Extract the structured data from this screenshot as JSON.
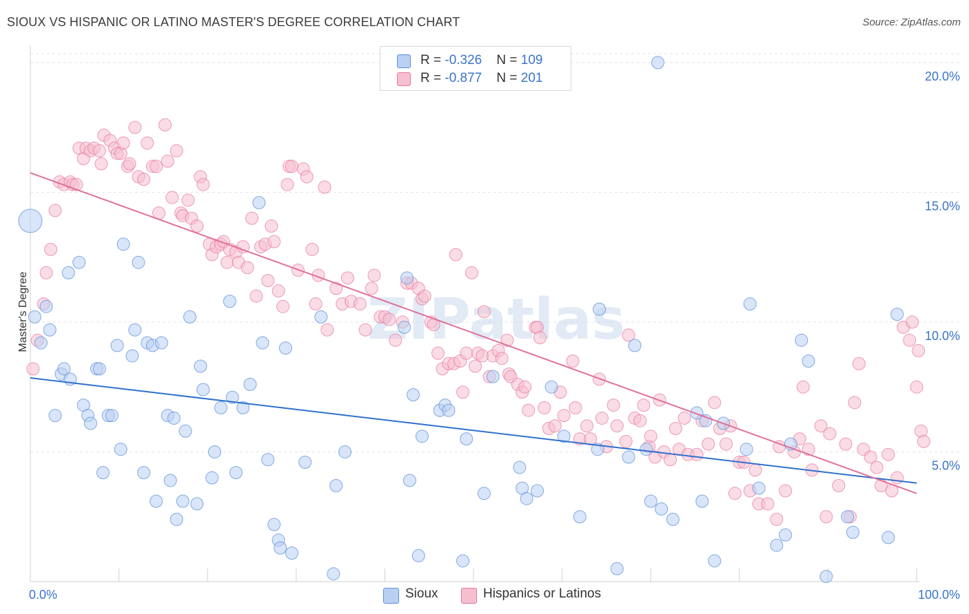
{
  "title": "SIOUX VS HISPANIC OR LATINO MASTER'S DEGREE CORRELATION CHART",
  "source": "Source: ZipAtlas.com",
  "watermark": "ZIPatlas",
  "colors": {
    "sioux": "#5b8fdc",
    "sioux_fill": "#b9d0f3",
    "hispanic": "#e5739a",
    "hispanic_fill": "#f6bfd0",
    "sioux_line": "#2f6fcf",
    "hispanic_line": "#e0709a",
    "tick_label": "#3a73c9"
  },
  "legend_top": [
    {
      "r_label": "R = ",
      "r_value": "-0.326",
      "n_label": "N = ",
      "n_value": "109"
    },
    {
      "r_label": "R = ",
      "r_value": "-0.877",
      "n_label": "N = ",
      "n_value": "201"
    }
  ],
  "chart_data": {
    "type": "scatter",
    "title": "SIOUX VS HISPANIC OR LATINO MASTER'S DEGREE CORRELATION CHART",
    "xlabel": "",
    "ylabel": "Master's Degree",
    "xlim": [
      0,
      100
    ],
    "ylim": [
      0,
      20.5
    ],
    "x_tick_labels": [
      "0.0%",
      "100.0%"
    ],
    "y_ticks": [
      5,
      10,
      15,
      20
    ],
    "y_tick_labels": [
      "5.0%",
      "10.0%",
      "15.0%",
      "20.0%"
    ],
    "grid": "horizontal dashed",
    "legend": "top-center and bottom",
    "series": [
      {
        "name": "Sioux",
        "r": -0.326,
        "n": 109,
        "trend": [
          [
            0,
            7.85
          ],
          [
            100,
            3.8
          ]
        ],
        "points": [
          [
            0,
            13.9
          ],
          [
            0.5,
            10.2
          ],
          [
            1.2,
            9.2
          ],
          [
            1.8,
            10.6
          ],
          [
            2.2,
            9.7
          ],
          [
            2.8,
            6.4
          ],
          [
            3.5,
            8.0
          ],
          [
            3.8,
            8.2
          ],
          [
            4.5,
            7.8
          ],
          [
            4.3,
            11.9
          ],
          [
            5.5,
            12.3
          ],
          [
            6.0,
            6.8
          ],
          [
            6.5,
            6.4
          ],
          [
            6.8,
            6.1
          ],
          [
            7.5,
            8.2
          ],
          [
            7.8,
            8.2
          ],
          [
            8.2,
            4.2
          ],
          [
            8.8,
            6.4
          ],
          [
            9.2,
            6.4
          ],
          [
            9.8,
            9.1
          ],
          [
            10.2,
            5.1
          ],
          [
            10.5,
            13.0
          ],
          [
            11.5,
            8.7
          ],
          [
            11.8,
            9.7
          ],
          [
            12.2,
            12.3
          ],
          [
            12.8,
            4.2
          ],
          [
            13.2,
            9.2
          ],
          [
            13.8,
            9.1
          ],
          [
            14.2,
            3.1
          ],
          [
            14.8,
            9.2
          ],
          [
            15.5,
            6.4
          ],
          [
            15.8,
            3.9
          ],
          [
            16.2,
            6.3
          ],
          [
            16.5,
            2.4
          ],
          [
            17.2,
            3.1
          ],
          [
            17.5,
            5.8
          ],
          [
            18.0,
            10.2
          ],
          [
            18.8,
            3.0
          ],
          [
            19.2,
            8.3
          ],
          [
            19.5,
            7.4
          ],
          [
            20.5,
            4.0
          ],
          [
            20.8,
            5.0
          ],
          [
            21.5,
            6.7
          ],
          [
            22.5,
            10.8
          ],
          [
            22.8,
            7.1
          ],
          [
            23.2,
            4.2
          ],
          [
            24.0,
            6.7
          ],
          [
            24.8,
            7.6
          ],
          [
            25.8,
            14.6
          ],
          [
            26.2,
            9.2
          ],
          [
            26.8,
            4.7
          ],
          [
            27.5,
            2.2
          ],
          [
            28.0,
            1.6
          ],
          [
            28.2,
            1.3
          ],
          [
            28.8,
            9.0
          ],
          [
            29.5,
            1.1
          ],
          [
            31.0,
            4.6
          ],
          [
            32.8,
            10.2
          ],
          [
            34.2,
            0.3
          ],
          [
            34.5,
            3.7
          ],
          [
            35.5,
            5.0
          ],
          [
            42.2,
            9.8
          ],
          [
            42.5,
            11.7
          ],
          [
            42.8,
            3.9
          ],
          [
            43.2,
            7.2
          ],
          [
            43.8,
            1.0
          ],
          [
            44.2,
            5.6
          ],
          [
            46.2,
            6.6
          ],
          [
            46.8,
            6.8
          ],
          [
            47.2,
            6.6
          ],
          [
            48.8,
            0.8
          ],
          [
            49.2,
            5.5
          ],
          [
            51.2,
            3.4
          ],
          [
            52.2,
            7.9
          ],
          [
            55.2,
            4.4
          ],
          [
            55.5,
            3.6
          ],
          [
            56.0,
            3.2
          ],
          [
            57.2,
            3.5
          ],
          [
            58.8,
            7.5
          ],
          [
            60.2,
            5.6
          ],
          [
            62.0,
            2.5
          ],
          [
            64.0,
            5.1
          ],
          [
            64.2,
            10.5
          ],
          [
            66.2,
            0.5
          ],
          [
            67.5,
            4.8
          ],
          [
            68.2,
            9.1
          ],
          [
            69.5,
            5.1
          ],
          [
            70.0,
            3.1
          ],
          [
            70.8,
            20.0
          ],
          [
            71.2,
            2.8
          ],
          [
            72.5,
            2.4
          ],
          [
            75.2,
            6.5
          ],
          [
            75.8,
            3.1
          ],
          [
            76.2,
            6.2
          ],
          [
            77.2,
            0.8
          ],
          [
            78.2,
            6.1
          ],
          [
            80.8,
            5.1
          ],
          [
            81.2,
            10.7
          ],
          [
            82.2,
            3.6
          ],
          [
            84.2,
            1.4
          ],
          [
            85.2,
            1.8
          ],
          [
            85.8,
            5.3
          ],
          [
            87.0,
            9.3
          ],
          [
            87.8,
            8.5
          ],
          [
            89.8,
            0.2
          ],
          [
            92.2,
            2.5
          ],
          [
            92.8,
            1.9
          ],
          [
            96.8,
            1.7
          ],
          [
            97.8,
            10.3
          ]
        ]
      },
      {
        "name": "Hispanics or Latinos",
        "r": -0.877,
        "n": 201,
        "trend": [
          [
            0,
            15.75
          ],
          [
            100,
            3.4
          ]
        ],
        "points": [
          [
            0.3,
            8.2
          ],
          [
            0.8,
            9.3
          ],
          [
            1.5,
            10.7
          ],
          [
            1.8,
            11.9
          ],
          [
            2.3,
            12.8
          ],
          [
            2.8,
            14.3
          ],
          [
            3.3,
            15.4
          ],
          [
            3.8,
            15.3
          ],
          [
            4.5,
            15.4
          ],
          [
            4.8,
            15.3
          ],
          [
            5.2,
            15.3
          ],
          [
            5.5,
            16.7
          ],
          [
            6.0,
            16.3
          ],
          [
            6.3,
            16.7
          ],
          [
            6.8,
            16.6
          ],
          [
            7.2,
            16.7
          ],
          [
            7.8,
            16.6
          ],
          [
            8.0,
            16.1
          ],
          [
            8.3,
            17.2
          ],
          [
            9.0,
            17.0
          ],
          [
            9.5,
            16.7
          ],
          [
            9.8,
            16.5
          ],
          [
            10.2,
            16.5
          ],
          [
            10.5,
            16.9
          ],
          [
            11.0,
            16.0
          ],
          [
            11.2,
            16.1
          ],
          [
            11.8,
            17.5
          ],
          [
            12.2,
            15.6
          ],
          [
            12.8,
            15.5
          ],
          [
            13.2,
            16.9
          ],
          [
            13.8,
            16.0
          ],
          [
            14.2,
            16.0
          ],
          [
            14.5,
            14.2
          ],
          [
            15.2,
            17.6
          ],
          [
            15.5,
            16.2
          ],
          [
            16.0,
            14.8
          ],
          [
            16.5,
            16.6
          ],
          [
            17.0,
            14.2
          ],
          [
            17.2,
            14.1
          ],
          [
            17.8,
            14.7
          ],
          [
            18.2,
            14.0
          ],
          [
            18.8,
            13.7
          ],
          [
            19.2,
            15.6
          ],
          [
            19.5,
            15.3
          ],
          [
            20.2,
            13.0
          ],
          [
            20.5,
            12.6
          ],
          [
            21.0,
            12.9
          ],
          [
            21.5,
            13.0
          ],
          [
            21.8,
            13.1
          ],
          [
            22.2,
            12.3
          ],
          [
            22.5,
            12.8
          ],
          [
            23.2,
            12.7
          ],
          [
            23.5,
            12.3
          ],
          [
            24.0,
            12.9
          ],
          [
            24.5,
            12.1
          ],
          [
            25.0,
            14.0
          ],
          [
            25.5,
            11.0
          ],
          [
            26.0,
            12.9
          ],
          [
            26.5,
            13.0
          ],
          [
            26.8,
            11.6
          ],
          [
            27.2,
            13.7
          ],
          [
            27.5,
            13.1
          ],
          [
            28.0,
            11.2
          ],
          [
            28.5,
            10.6
          ],
          [
            29.0,
            15.3
          ],
          [
            29.2,
            16.0
          ],
          [
            29.5,
            16.0
          ],
          [
            30.2,
            12.0
          ],
          [
            30.8,
            15.9
          ],
          [
            31.2,
            15.6
          ],
          [
            31.8,
            12.8
          ],
          [
            32.2,
            10.7
          ],
          [
            32.5,
            11.8
          ],
          [
            33.2,
            15.2
          ],
          [
            33.5,
            9.7
          ],
          [
            34.5,
            11.3
          ],
          [
            35.2,
            10.7
          ],
          [
            35.8,
            11.7
          ],
          [
            36.2,
            10.8
          ],
          [
            37.2,
            10.7
          ],
          [
            37.8,
            9.7
          ],
          [
            38.5,
            11.3
          ],
          [
            38.8,
            11.8
          ],
          [
            39.5,
            10.2
          ],
          [
            40.0,
            10.2
          ],
          [
            40.5,
            10.1
          ],
          [
            41.2,
            9.3
          ],
          [
            42.0,
            10.0
          ],
          [
            42.5,
            11.5
          ],
          [
            43.0,
            11.5
          ],
          [
            43.8,
            11.3
          ],
          [
            44.2,
            10.9
          ],
          [
            44.5,
            11.0
          ],
          [
            45.2,
            10.0
          ],
          [
            45.5,
            9.9
          ],
          [
            46.0,
            8.8
          ],
          [
            46.5,
            8.2
          ],
          [
            47.2,
            8.4
          ],
          [
            47.8,
            8.4
          ],
          [
            48.0,
            12.6
          ],
          [
            48.5,
            8.5
          ],
          [
            48.8,
            7.3
          ],
          [
            49.2,
            8.8
          ],
          [
            49.8,
            11.9
          ],
          [
            50.2,
            8.3
          ],
          [
            50.5,
            8.8
          ],
          [
            51.0,
            8.7
          ],
          [
            51.2,
            10.4
          ],
          [
            51.8,
            7.9
          ],
          [
            52.2,
            8.7
          ],
          [
            52.8,
            8.9
          ],
          [
            53.2,
            8.6
          ],
          [
            53.8,
            9.3
          ],
          [
            54.0,
            8.0
          ],
          [
            54.2,
            7.9
          ],
          [
            55.0,
            7.6
          ],
          [
            55.5,
            7.3
          ],
          [
            55.8,
            7.5
          ],
          [
            56.2,
            6.6
          ],
          [
            57.0,
            9.8
          ],
          [
            57.2,
            9.8
          ],
          [
            57.5,
            9.4
          ],
          [
            58.0,
            6.7
          ],
          [
            58.5,
            5.9
          ],
          [
            59.2,
            6.0
          ],
          [
            59.8,
            7.3
          ],
          [
            60.2,
            6.4
          ],
          [
            61.2,
            8.5
          ],
          [
            61.5,
            6.7
          ],
          [
            62.0,
            5.5
          ],
          [
            62.8,
            6.0
          ],
          [
            63.2,
            5.5
          ],
          [
            64.2,
            7.8
          ],
          [
            64.5,
            6.3
          ],
          [
            65.0,
            5.2
          ],
          [
            65.8,
            6.8
          ],
          [
            66.2,
            6.0
          ],
          [
            67.2,
            5.4
          ],
          [
            67.5,
            9.5
          ],
          [
            68.2,
            6.3
          ],
          [
            68.8,
            6.2
          ],
          [
            69.2,
            6.8
          ],
          [
            69.8,
            5.2
          ],
          [
            70.0,
            5.6
          ],
          [
            70.5,
            4.8
          ],
          [
            71.0,
            7.0
          ],
          [
            71.5,
            5.0
          ],
          [
            72.2,
            4.7
          ],
          [
            72.8,
            5.9
          ],
          [
            73.2,
            5.1
          ],
          [
            73.8,
            6.3
          ],
          [
            74.2,
            4.9
          ],
          [
            75.2,
            4.9
          ],
          [
            75.8,
            6.2
          ],
          [
            76.5,
            5.3
          ],
          [
            77.2,
            6.9
          ],
          [
            77.8,
            5.9
          ],
          [
            78.5,
            5.3
          ],
          [
            79.0,
            6.0
          ],
          [
            79.5,
            3.4
          ],
          [
            80.0,
            4.6
          ],
          [
            80.5,
            4.6
          ],
          [
            81.2,
            3.5
          ],
          [
            81.8,
            4.3
          ],
          [
            82.2,
            3.0
          ],
          [
            83.2,
            3.0
          ],
          [
            84.2,
            2.4
          ],
          [
            84.5,
            5.2
          ],
          [
            85.2,
            3.5
          ],
          [
            86.2,
            5.0
          ],
          [
            86.8,
            5.5
          ],
          [
            87.2,
            7.5
          ],
          [
            87.8,
            5.1
          ],
          [
            88.2,
            4.3
          ],
          [
            89.2,
            6.0
          ],
          [
            89.8,
            2.5
          ],
          [
            90.2,
            5.7
          ],
          [
            91.2,
            3.7
          ],
          [
            92.0,
            5.3
          ],
          [
            92.5,
            2.5
          ],
          [
            93.0,
            6.9
          ],
          [
            93.5,
            8.4
          ],
          [
            94.0,
            5.1
          ],
          [
            94.8,
            4.8
          ],
          [
            95.5,
            4.4
          ],
          [
            96.0,
            3.7
          ],
          [
            96.8,
            4.9
          ],
          [
            97.2,
            3.5
          ],
          [
            97.8,
            4.0
          ],
          [
            98.5,
            9.8
          ],
          [
            99.2,
            9.3
          ],
          [
            99.5,
            10.0
          ],
          [
            100.0,
            7.5
          ],
          [
            100.5,
            5.8
          ],
          [
            100.8,
            5.4
          ],
          [
            100.2,
            8.9
          ]
        ]
      }
    ]
  },
  "legend_bottom": [
    {
      "label": "Sioux"
    },
    {
      "label": "Hispanics or Latinos"
    }
  ]
}
